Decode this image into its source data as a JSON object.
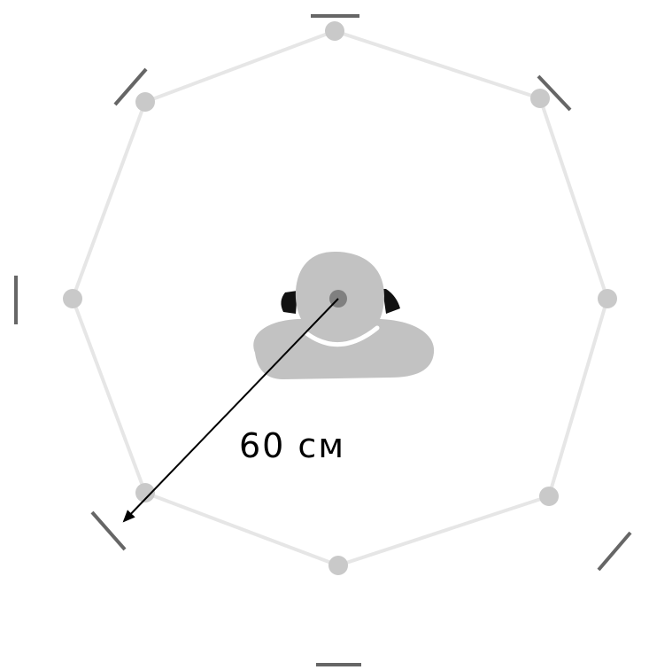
{
  "distance_label": "60 см",
  "colors": {
    "ring": "#e6e6e6",
    "node": "#c9c9c9",
    "speaker": "#666666",
    "listener": "#c2c2c2",
    "listener_center": "#808080",
    "headphone": "#111111",
    "arrow": "#000000"
  },
  "icons": {
    "listener": "listener-top-view-icon",
    "speaker": "speaker-marker-icon"
  }
}
